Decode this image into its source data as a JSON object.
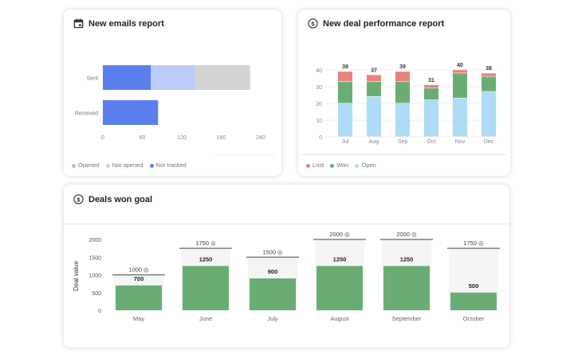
{
  "emails": {
    "title": "New emails report",
    "icon": "calendar-icon",
    "chart_data": {
      "type": "bar",
      "orientation": "horizontal",
      "stacked": true,
      "categories": [
        "Sent",
        "Received"
      ],
      "series": [
        {
          "name": "Not tracked",
          "color": "#5b7fec",
          "values": [
            73,
            84
          ]
        },
        {
          "name": "Not opened",
          "color": "#bccbfa",
          "values": [
            68,
            0
          ]
        },
        {
          "name": "Opened",
          "color": "#d4d4d4",
          "values": [
            83,
            0
          ]
        }
      ],
      "xlim": [
        0,
        240
      ],
      "xticks": [
        0,
        60,
        120,
        180,
        240
      ]
    },
    "legend": [
      {
        "label": "Opened",
        "color": "#bdbdbd"
      },
      {
        "label": "Not opened",
        "color": "#c8cfdc"
      },
      {
        "label": "Not tracked",
        "color": "#5b7fec"
      }
    ]
  },
  "deals": {
    "title": "New deal performance report",
    "icon": "dollar-circle-icon",
    "chart_data": {
      "type": "bar",
      "stacked": true,
      "categories": [
        "Jul",
        "Aug",
        "Sep",
        "Oct",
        "Nov",
        "Dec"
      ],
      "series": [
        {
          "name": "Open",
          "color": "#aedbf5",
          "values": [
            20,
            24,
            20,
            22,
            23,
            27
          ]
        },
        {
          "name": "Won",
          "color": "#6aad74",
          "values": [
            13,
            9,
            13,
            7,
            15,
            9
          ]
        },
        {
          "name": "Lost",
          "color": "#e8837a",
          "values": [
            6,
            4,
            6,
            2,
            2,
            2
          ]
        }
      ],
      "totals": [
        "39",
        "37",
        "39",
        "31",
        "40",
        "38"
      ],
      "ylim": [
        0,
        40
      ],
      "yticks": [
        0,
        10,
        20,
        30,
        40
      ],
      "grid": true
    },
    "legend": [
      {
        "label": "Lost",
        "color": "#e8837a"
      },
      {
        "label": "Won",
        "color": "#6aad74"
      },
      {
        "label": "Open",
        "color": "#aedbf5"
      }
    ]
  },
  "goal": {
    "title": "Deals won goal",
    "icon": "dollar-circle-icon",
    "chart_data": {
      "type": "bar",
      "categories": [
        "May",
        "June",
        "July",
        "August",
        "September",
        "October"
      ],
      "values": [
        700,
        1250,
        900,
        1250,
        1250,
        500
      ],
      "labels": [
        "700",
        "1250",
        "900",
        "1250",
        "1250",
        "500"
      ],
      "goals": [
        1000,
        1750,
        1500,
        2000,
        2000,
        1750
      ],
      "goal_labels": [
        "1000",
        "1750",
        "1500",
        "2000",
        "2000",
        "1750"
      ],
      "ylabel": "Deal value",
      "ylim": [
        0,
        2000
      ],
      "yticks": [
        0,
        500,
        1000,
        1500,
        2000
      ],
      "bar_color": "#6aad74",
      "goal_icon": "target-icon"
    }
  }
}
